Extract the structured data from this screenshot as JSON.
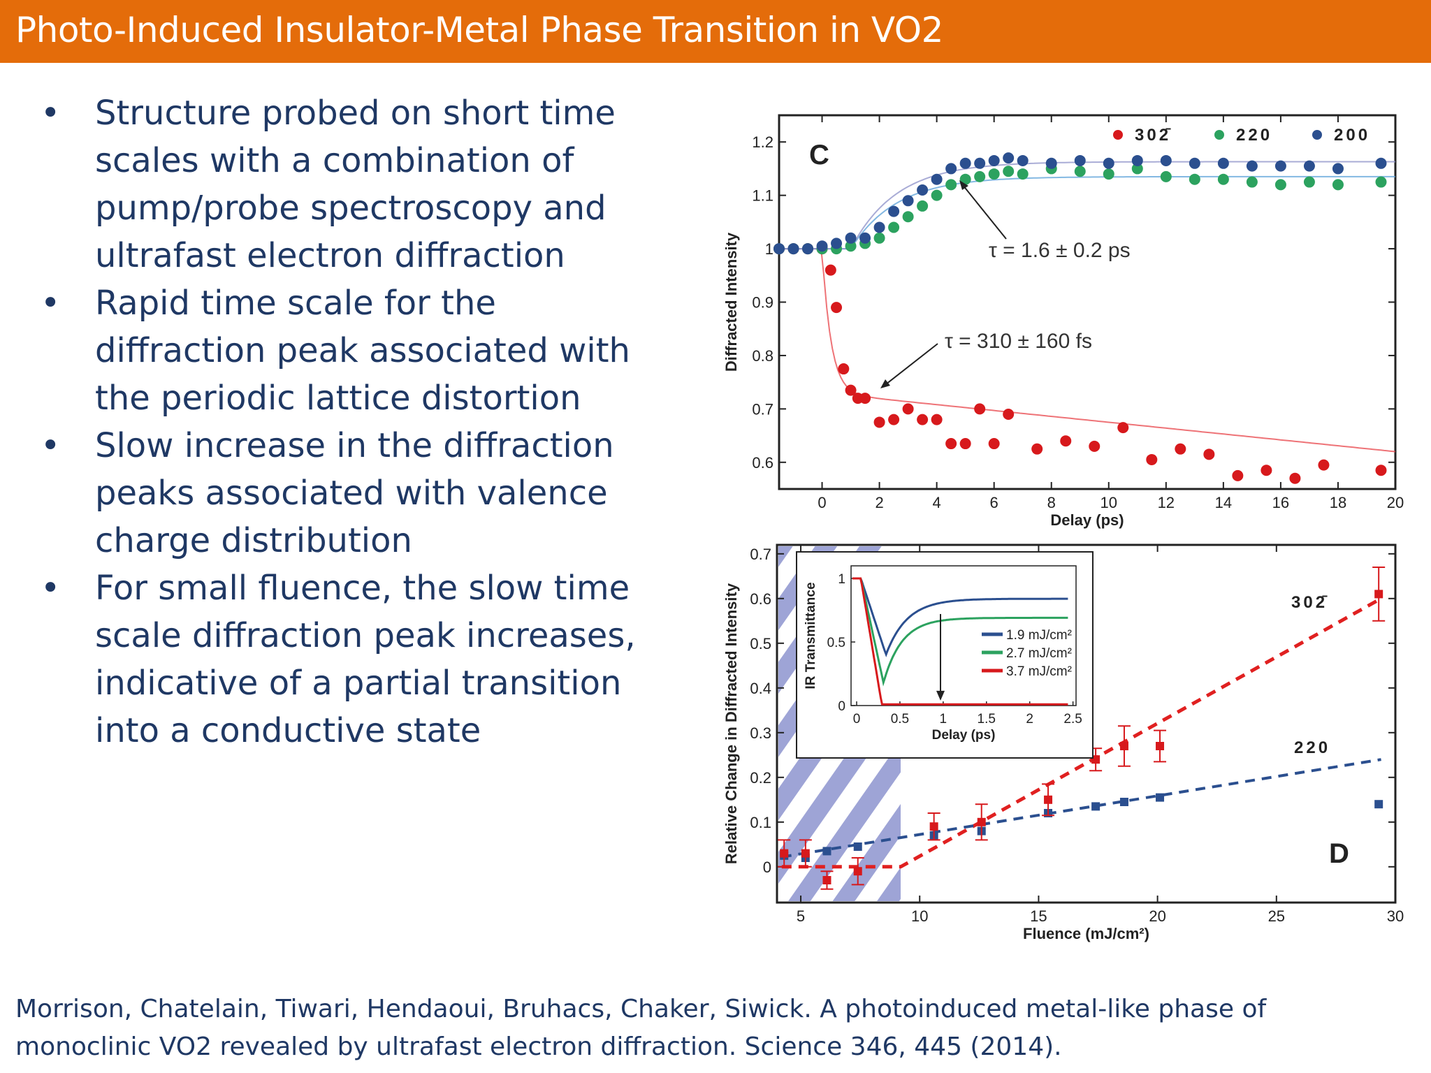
{
  "slide": {
    "title": "Photo-Induced Insulator-Metal Phase Transition in VO2",
    "bullet_symbol": "•",
    "bullets": [
      [
        "Structure probed on short time",
        "scales with a combination of",
        "pump/probe spectroscopy and",
        "ultrafast electron diffraction"
      ],
      [
        "Rapid time scale for the",
        "diffraction peak associated with",
        "the periodic lattice distortion"
      ],
      [
        "Slow increase in the diffraction",
        "peaks associated with valence",
        "charge distribution"
      ],
      [
        "For small fluence, the slow time",
        "scale diffraction peak increases,",
        "indicative of a partial transition",
        "into a conductive state"
      ]
    ],
    "citation": [
      "Morrison, Chatelain, Tiwari, Hendaoui, Bruhacs, Chaker, Siwick. A photoinduced metal-like phase of",
      "monoclinic VO2 revealed by ultrafast electron diffraction. Science 346, 445 (2014)."
    ]
  },
  "colors": {
    "title_bar": "#e46c0a",
    "body_text": "#1f3864",
    "red": "#d7191c",
    "green": "#2ca25f",
    "blue": "#2b4f8f"
  },
  "chart_data": [
    {
      "type": "scatter",
      "panel_label": "C",
      "xlabel": "Delay (ps)",
      "ylabel": "Diffracted Intensity",
      "xlim": [
        -1.5,
        20
      ],
      "ylim": [
        0.55,
        1.25
      ],
      "xticks": [
        0,
        2,
        4,
        6,
        8,
        10,
        12,
        14,
        16,
        18,
        20
      ],
      "yticks": [
        0.6,
        0.7,
        0.8,
        0.9,
        1,
        1.1,
        1.2
      ],
      "ytick_labels": [
        "0.6",
        "0.7",
        "0.8",
        "0.9",
        "1",
        "1.1",
        "1.2"
      ],
      "series": [
        {
          "name": "302̄",
          "color": "#d7191c",
          "x": [
            -1.5,
            -1,
            -0.5,
            0,
            0.3,
            0.5,
            0.75,
            1,
            1.25,
            1.5,
            2,
            2.5,
            3,
            3.5,
            4,
            4.5,
            5,
            5.5,
            6,
            6.5,
            7.5,
            8.5,
            9.5,
            10.5,
            11.5,
            12.5,
            13.5,
            14.5,
            15.5,
            16.5,
            17.5,
            19.5
          ],
          "y": [
            1.0,
            1.0,
            1.0,
            1.0,
            0.96,
            0.89,
            0.775,
            0.735,
            0.72,
            0.72,
            0.675,
            0.68,
            0.7,
            0.68,
            0.68,
            0.635,
            0.635,
            0.7,
            0.635,
            0.69,
            0.625,
            0.64,
            0.63,
            0.665,
            0.605,
            0.625,
            0.615,
            0.575,
            0.585,
            0.57,
            0.595,
            0.585
          ]
        },
        {
          "name": "220",
          "color": "#2ca25f",
          "x": [
            -1.5,
            -1,
            -0.5,
            0,
            0.5,
            1,
            1.5,
            2,
            2.5,
            3,
            3.5,
            4,
            4.5,
            5,
            5.5,
            6,
            6.5,
            7,
            8,
            9,
            10,
            11,
            12,
            13,
            14,
            15,
            16,
            17,
            18,
            19.5
          ],
          "y": [
            1.0,
            1.0,
            1.0,
            1.0,
            1.0,
            1.005,
            1.01,
            1.02,
            1.04,
            1.06,
            1.08,
            1.1,
            1.12,
            1.13,
            1.135,
            1.14,
            1.145,
            1.14,
            1.15,
            1.145,
            1.14,
            1.15,
            1.135,
            1.13,
            1.13,
            1.125,
            1.12,
            1.125,
            1.12,
            1.125
          ]
        },
        {
          "name": "200",
          "color": "#2b4f8f",
          "x": [
            -1.5,
            -1,
            -0.5,
            0,
            0.5,
            1,
            1.5,
            2,
            2.5,
            3,
            3.5,
            4,
            4.5,
            5,
            5.5,
            6,
            6.5,
            7,
            8,
            9,
            10,
            11,
            12,
            13,
            14,
            15,
            16,
            17,
            18,
            19.5
          ],
          "y": [
            1.0,
            1.0,
            1.0,
            1.005,
            1.01,
            1.02,
            1.02,
            1.04,
            1.07,
            1.09,
            1.11,
            1.13,
            1.15,
            1.16,
            1.16,
            1.165,
            1.17,
            1.165,
            1.16,
            1.165,
            1.16,
            1.165,
            1.165,
            1.16,
            1.16,
            1.155,
            1.155,
            1.155,
            1.15,
            1.16
          ]
        }
      ],
      "annotations": [
        "τ = 1.6 ± 0.2 ps",
        "τ = 310 ± 160 fs"
      ]
    },
    {
      "type": "scatter",
      "panel_label": "D",
      "xlabel": "Fluence (mJ/cm²)",
      "ylabel": "Relative Change in Diffracted Intensity",
      "xlim": [
        4,
        30
      ],
      "ylim": [
        -0.08,
        0.72
      ],
      "xticks": [
        5,
        10,
        15,
        20,
        25,
        30
      ],
      "yticks": [
        0,
        0.1,
        0.2,
        0.3,
        0.4,
        0.5,
        0.6,
        0.7
      ],
      "ytick_labels": [
        "0",
        "0.1",
        "0.2",
        "0.3",
        "0.4",
        "0.5",
        "0.6",
        "0.7"
      ],
      "series": [
        {
          "name": "302̄",
          "color": "#d7191c",
          "x": [
            4.3,
            5.2,
            6.1,
            7.4,
            10.6,
            12.6,
            15.4,
            17.4,
            18.6,
            20.1,
            29.3
          ],
          "y": [
            0.03,
            0.03,
            -0.03,
            -0.01,
            0.09,
            0.1,
            0.15,
            0.24,
            0.27,
            0.27,
            0.61
          ],
          "err": [
            0.03,
            0.03,
            0.02,
            0.03,
            0.03,
            0.04,
            0.035,
            0.025,
            0.045,
            0.035,
            0.06
          ]
        },
        {
          "name": "220",
          "color": "#2b4f8f",
          "x": [
            4.3,
            5.2,
            6.1,
            7.4,
            10.6,
            12.6,
            15.4,
            17.4,
            18.6,
            20.1,
            29.3
          ],
          "y": [
            0.025,
            0.02,
            0.035,
            0.045,
            0.07,
            0.08,
            0.12,
            0.135,
            0.145,
            0.155,
            0.14
          ]
        }
      ],
      "inset": {
        "type": "line",
        "xlabel": "Delay (ps)",
        "ylabel": "IR Transmittance",
        "xticks": [
          "0",
          "0.5",
          "1",
          "1.5",
          "2",
          "2.5"
        ],
        "yticks": [
          "0",
          "0.5",
          "1"
        ],
        "series": [
          {
            "name": "1.9 mJ/cm²",
            "color": "#2b4f8f"
          },
          {
            "name": "2.7 mJ/cm²",
            "color": "#2ca25f"
          },
          {
            "name": "3.7 mJ/cm²",
            "color": "#d7191c"
          }
        ]
      }
    }
  ]
}
